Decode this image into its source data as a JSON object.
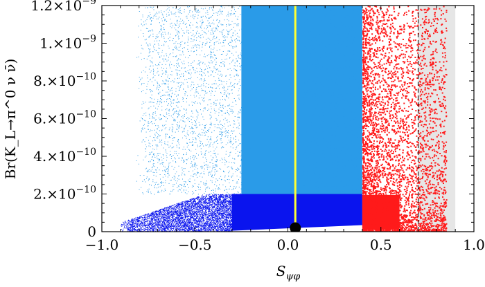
{
  "chart_data": {
    "type": "scatter",
    "title": "",
    "xlabel": "S_ψφ",
    "ylabel": "Br(K_L→π^0 ν ν̄)",
    "xlim": [
      -1.0,
      1.0
    ],
    "ylim": [
      0,
      1.2e-09
    ],
    "x_ticks": [
      {
        "value": -1.0,
        "label": "−1.0"
      },
      {
        "value": -0.5,
        "label": "−0.5"
      },
      {
        "value": 0.0,
        "label": "0.0"
      },
      {
        "value": 0.5,
        "label": "0.5"
      },
      {
        "value": 1.0,
        "label": "1.0"
      }
    ],
    "y_ticks": [
      {
        "value": 0,
        "mantissa": "0",
        "exponent": ""
      },
      {
        "value": 2e-10,
        "mantissa": "2.×10",
        "exponent": "−10"
      },
      {
        "value": 4e-10,
        "mantissa": "4.×10",
        "exponent": "−10"
      },
      {
        "value": 6e-10,
        "mantissa": "6.×10",
        "exponent": "−10"
      },
      {
        "value": 8e-10,
        "mantissa": "8.×10",
        "exponent": "−10"
      },
      {
        "value": 1e-09,
        "mantissa": "1.×10",
        "exponent": "−9"
      },
      {
        "value": 1.2e-09,
        "mantissa": "1.2×10",
        "exponent": "−9"
      }
    ],
    "grid": false,
    "shaded_region": {
      "x_from": 0.7,
      "x_to": 0.9,
      "color": "#e6e6e6"
    },
    "reference_line": {
      "x": 0.7,
      "style": "dashed",
      "color": "#000000"
    },
    "series": [
      {
        "kind": "dense scatter",
        "color": "#2a9be8",
        "x_range": [
          -0.82,
          0.4
        ],
        "y_range": [
          2e-10,
          1.2e-09
        ],
        "band_x_range": [
          -0.25,
          0.4
        ]
      },
      {
        "kind": "dense scatter",
        "color": "#0a14ee",
        "x_range": [
          -0.9,
          0.4
        ],
        "y_range": [
          0,
          2e-10
        ]
      },
      {
        "kind": "scatter",
        "color": "#ff1a1a",
        "x_range": [
          0.4,
          0.85
        ],
        "y_range": [
          0,
          1.2e-09
        ]
      },
      {
        "kind": "line",
        "color": "#ffff33",
        "points": [
          [
            0.04,
            5e-12
          ],
          [
            0.04,
            1.2e-09
          ]
        ]
      },
      {
        "kind": "point",
        "color": "#000000",
        "points": [
          [
            0.04,
            2e-11
          ]
        ]
      }
    ]
  }
}
